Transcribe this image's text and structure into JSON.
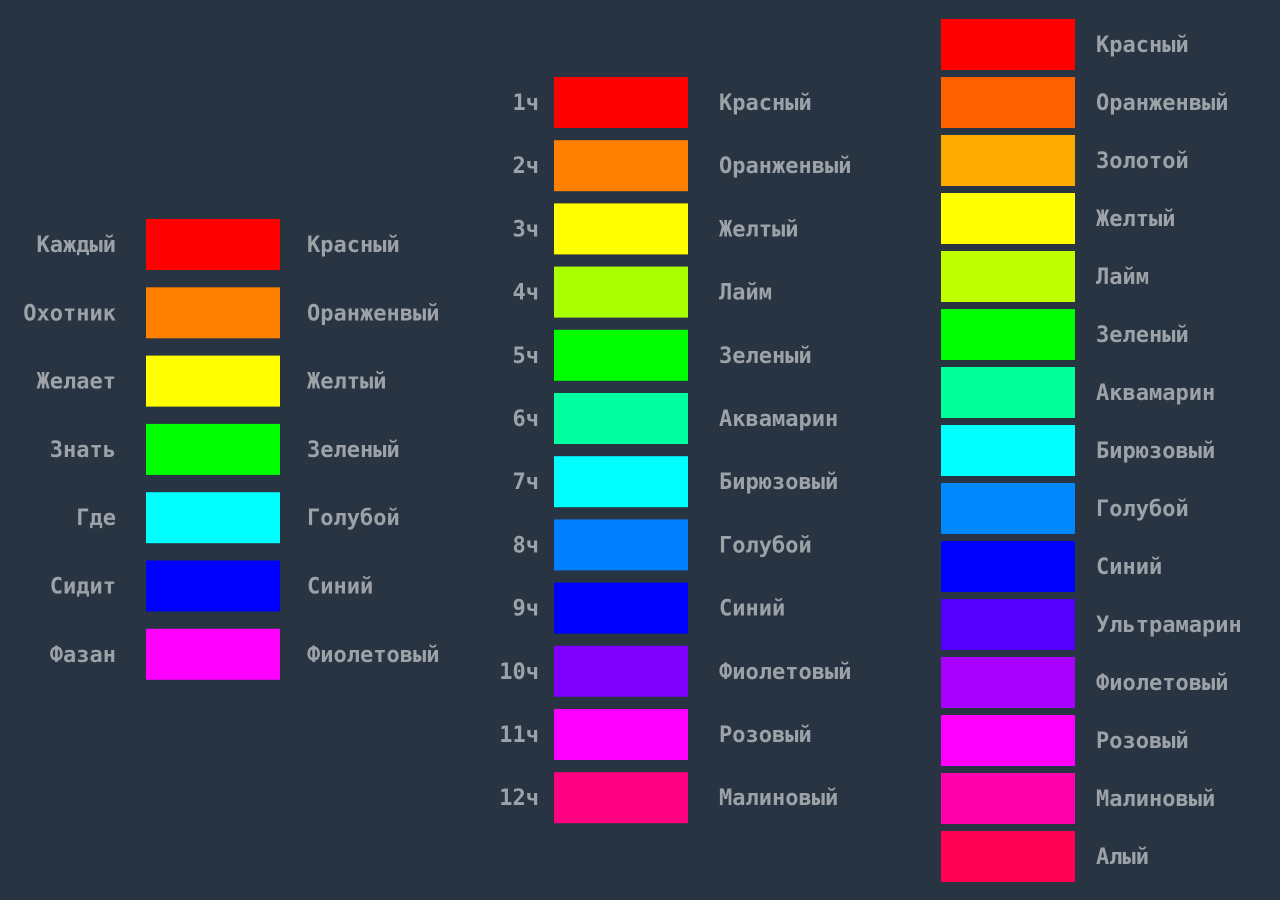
{
  "groups": [
    {
      "rows": [
        {
          "label": "Каждый",
          "name": "Красный",
          "color": "#ff0000"
        },
        {
          "label": "Охотник",
          "name": "Оранженвый",
          "color": "#ff8000"
        },
        {
          "label": "Желает",
          "name": "Желтый",
          "color": "#ffff00"
        },
        {
          "label": "Знать",
          "name": "Зеленый",
          "color": "#00ff00"
        },
        {
          "label": "Где",
          "name": "Голубой",
          "color": "#00ffff"
        },
        {
          "label": "Сидит",
          "name": "Синий",
          "color": "#0000ff"
        },
        {
          "label": "Фазан",
          "name": "Фиолетовый",
          "color": "#ff00ff"
        }
      ]
    },
    {
      "rows": [
        {
          "label": "1ч",
          "name": "Красный",
          "color": "#ff0000"
        },
        {
          "label": "2ч",
          "name": "Оранженвый",
          "color": "#ff8000"
        },
        {
          "label": "3ч",
          "name": "Желтый",
          "color": "#ffff00"
        },
        {
          "label": "4ч",
          "name": "Лайм",
          "color": "#aaff00"
        },
        {
          "label": "5ч",
          "name": "Зеленый",
          "color": "#00ff00"
        },
        {
          "label": "6ч",
          "name": "Аквамарин",
          "color": "#00ffa0"
        },
        {
          "label": "7ч",
          "name": "Бирюзовый",
          "color": "#00ffff"
        },
        {
          "label": "8ч",
          "name": "Голубой",
          "color": "#0080ff"
        },
        {
          "label": "9ч",
          "name": "Синий",
          "color": "#0000ff"
        },
        {
          "label": "10ч",
          "name": "Фиолетовый",
          "color": "#8000ff"
        },
        {
          "label": "11ч",
          "name": "Розовый",
          "color": "#ff00ff"
        },
        {
          "label": "12ч",
          "name": "Малиновый",
          "color": "#ff0080"
        }
      ]
    },
    {
      "rows": [
        {
          "name": "Красный",
          "color": "#ff0000"
        },
        {
          "name": "Оранженвый",
          "color": "#ff6000"
        },
        {
          "name": "Золотой",
          "color": "#ffaa00"
        },
        {
          "name": "Желтый",
          "color": "#ffff00"
        },
        {
          "name": "Лайм",
          "color": "#c0ff00"
        },
        {
          "name": "Зеленый",
          "color": "#00ff00"
        },
        {
          "name": "Аквамарин",
          "color": "#00ff99"
        },
        {
          "name": "Бирюзовый",
          "color": "#00ffff"
        },
        {
          "name": "Голубой",
          "color": "#0088ff"
        },
        {
          "name": "Синий",
          "color": "#0000ff"
        },
        {
          "name": "Ультрамарин",
          "color": "#5500ff"
        },
        {
          "name": "Фиолетовый",
          "color": "#aa00ff"
        },
        {
          "name": "Розовый",
          "color": "#ff00ff"
        },
        {
          "name": "Малиновый",
          "color": "#ff00aa"
        },
        {
          "name": "Алый",
          "color": "#ff0055"
        }
      ]
    }
  ]
}
